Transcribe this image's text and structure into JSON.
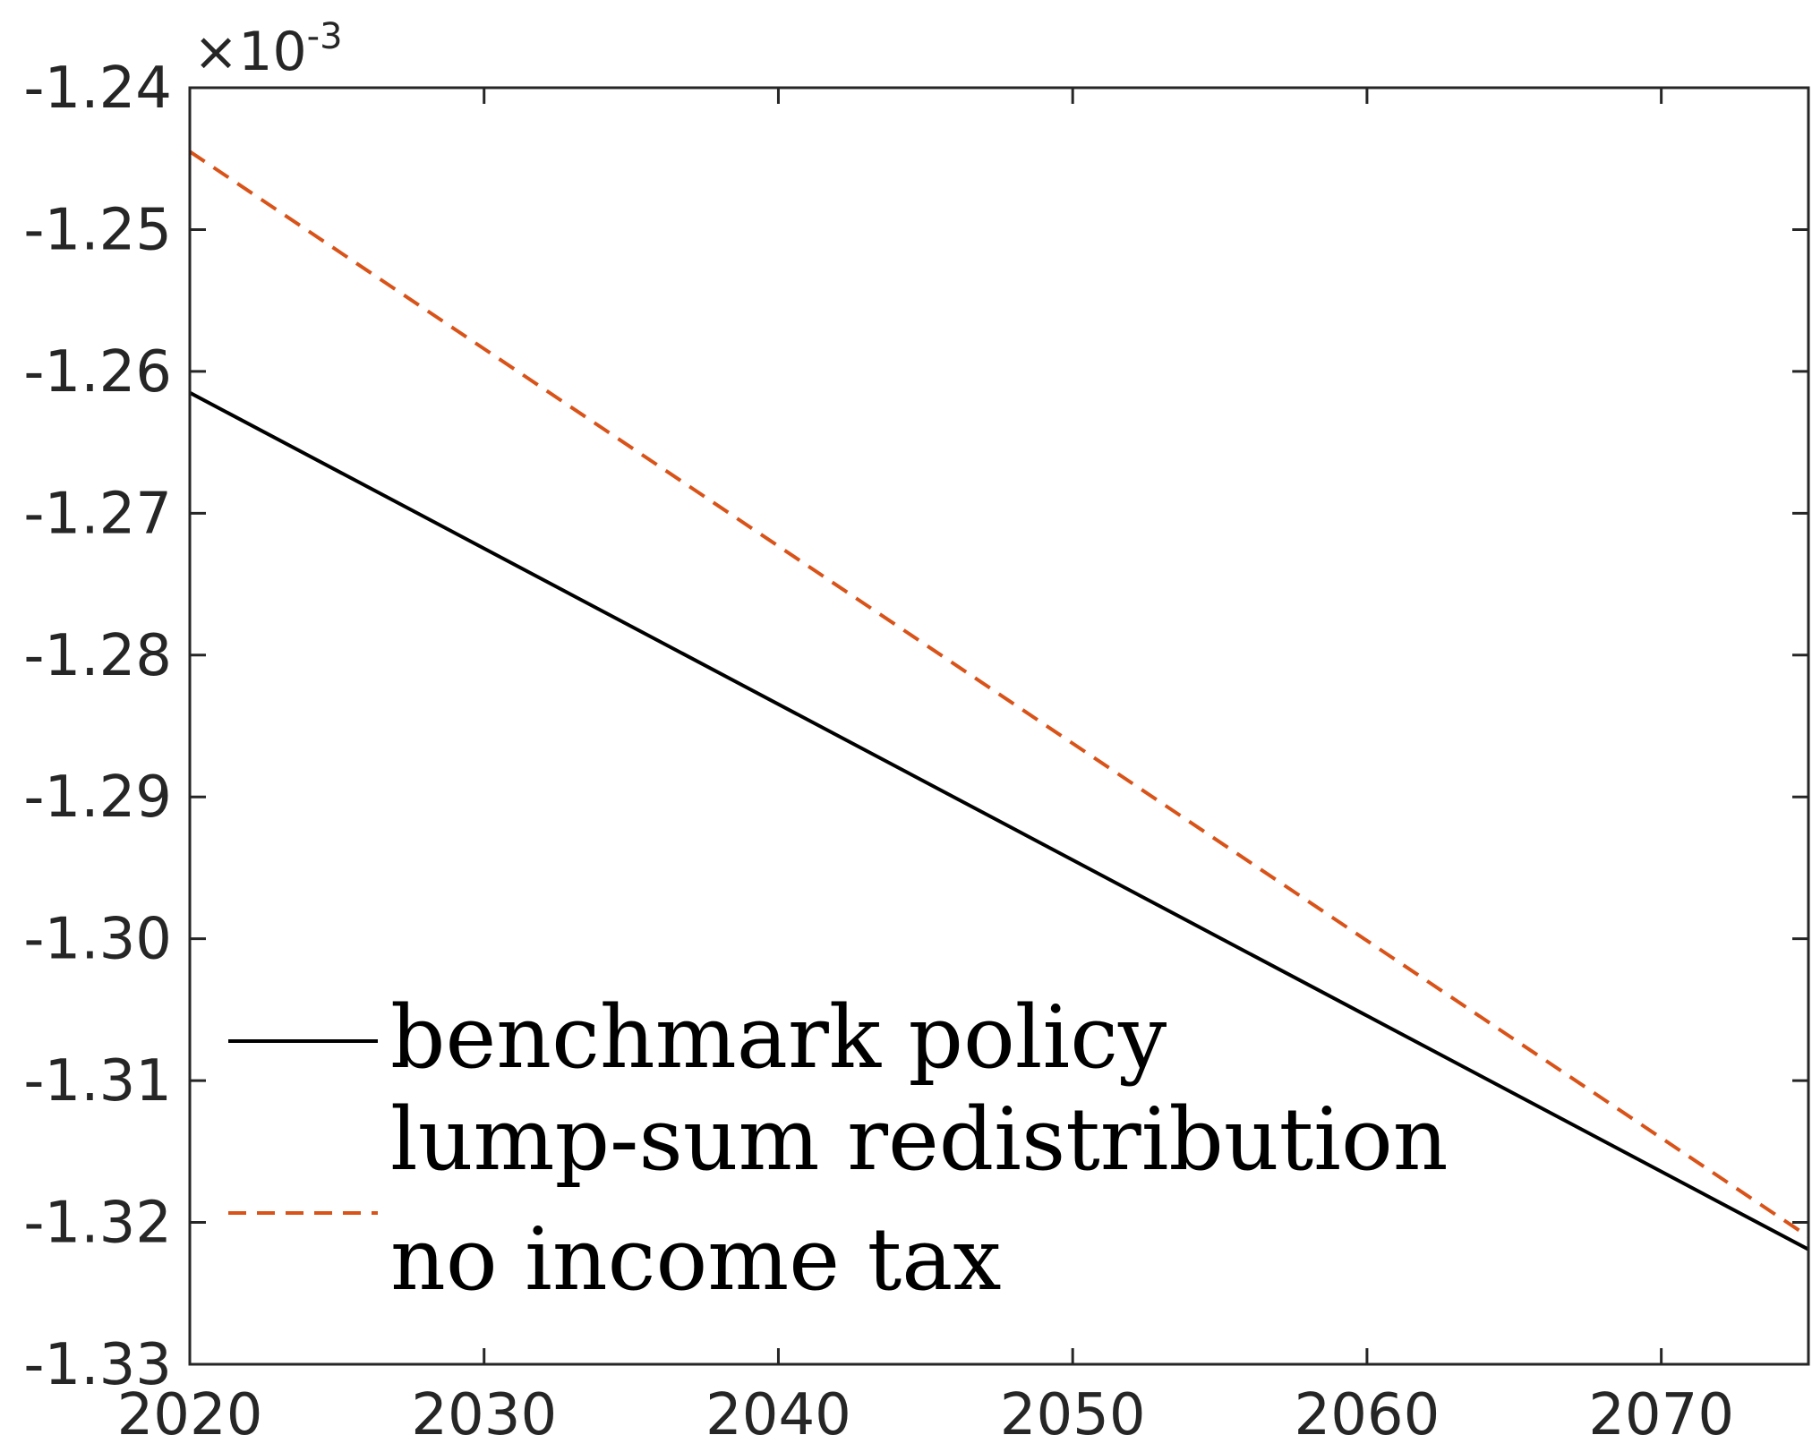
{
  "chart_data": {
    "type": "line",
    "title": "",
    "xlabel": "",
    "ylabel": "",
    "xlim": [
      2020,
      2075
    ],
    "ylim": [
      -1.33,
      -1.24
    ],
    "y_exponent_label": {
      "times": "×",
      "base": "10",
      "exp": "-3"
    },
    "x_ticks": [
      2020,
      2030,
      2040,
      2050,
      2060,
      2070
    ],
    "x_tick_labels": [
      "2020",
      "2030",
      "2040",
      "2050",
      "2060",
      "2070"
    ],
    "y_ticks": [
      -1.24,
      -1.25,
      -1.26,
      -1.27,
      -1.28,
      -1.29,
      -1.3,
      -1.31,
      -1.32,
      -1.33
    ],
    "y_tick_labels": [
      "-1.24",
      "-1.25",
      "-1.26",
      "-1.27",
      "-1.28",
      "-1.29",
      "-1.30",
      "-1.31",
      "-1.32",
      "-1.33"
    ],
    "grid": false,
    "legend_position": "bottom-left",
    "series": [
      {
        "name": "benchmark policy",
        "legend_label": "benchmark policy",
        "color": "#000000",
        "dash": "solid",
        "x": [
          2020,
          2075
        ],
        "y": [
          -1.2615,
          -1.3219
        ]
      },
      {
        "name": "lump-sum redistribution",
        "legend_label": "lump-sum redistribution",
        "color": "#000000",
        "dash": "none",
        "x": [],
        "y": []
      },
      {
        "name": "no income tax",
        "legend_label": "no income tax",
        "color": "#D95319",
        "dash": "dashed",
        "x": [
          2020,
          2075
        ],
        "y": [
          -1.2445,
          -1.321
        ]
      }
    ]
  }
}
